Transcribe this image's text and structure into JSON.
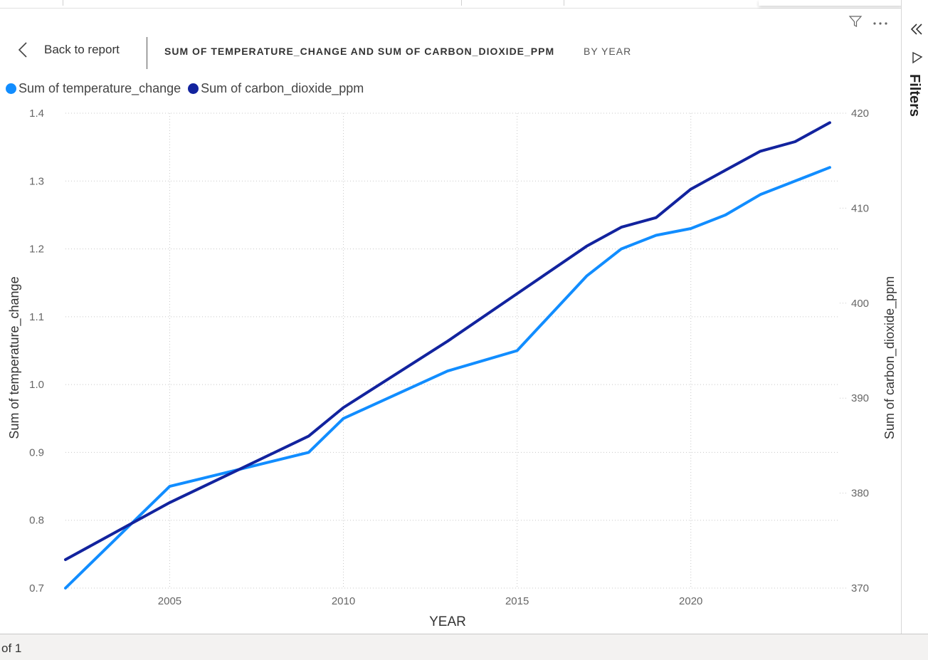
{
  "header": {
    "back_label": "Back to report",
    "visual_title": "SUM OF TEMPERATURE_CHANGE AND SUM OF CARBON_DIOXIDE_PPM",
    "by_label": "BY YEAR"
  },
  "legend": {
    "items": [
      {
        "label": "Sum of temperature_change",
        "color": "#118dff"
      },
      {
        "label": "Sum of carbon_dioxide_ppm",
        "color": "#12239e"
      }
    ]
  },
  "filters_pane": {
    "label": "Filters"
  },
  "footer": {
    "page_label": "of 1"
  },
  "chart_data": {
    "type": "line",
    "xlabel": "YEAR",
    "ylabel_left": "Sum of temperature_change",
    "ylabel_right": "Sum of carbon_dioxide_ppm",
    "x_ticks": [
      2005,
      2010,
      2015,
      2020
    ],
    "y_left_ticks": [
      "0.7",
      "0.8",
      "0.9",
      "1.0",
      "1.1",
      "1.2",
      "1.3",
      "1.4"
    ],
    "y_right_ticks": [
      "370",
      "380",
      "390",
      "400",
      "410",
      "420"
    ],
    "xlim": [
      2002,
      2024
    ],
    "ylim_left": [
      0.7,
      1.4
    ],
    "ylim_right": [
      370,
      420
    ],
    "grid": true,
    "legend_position": "top-left",
    "x": [
      2002,
      2004,
      2005,
      2007,
      2009,
      2010,
      2013,
      2015,
      2017,
      2018,
      2019,
      2020,
      2021,
      2022,
      2023,
      2024
    ],
    "series": [
      {
        "name": "Sum of temperature_change",
        "axis": "left",
        "color": "#118dff",
        "values": [
          0.7,
          0.8,
          0.85,
          0.875,
          0.9,
          0.95,
          1.02,
          1.05,
          1.16,
          1.2,
          1.22,
          1.23,
          1.25,
          1.28,
          1.3,
          1.32
        ]
      },
      {
        "name": "Sum of carbon_dioxide_ppm",
        "axis": "right",
        "color": "#12239e",
        "values": [
          373.0,
          377.0,
          379.0,
          382.5,
          386.0,
          389.0,
          396.0,
          401.0,
          406.0,
          408.0,
          409.0,
          412.0,
          414.0,
          416.0,
          417.0,
          419.0
        ]
      }
    ]
  }
}
